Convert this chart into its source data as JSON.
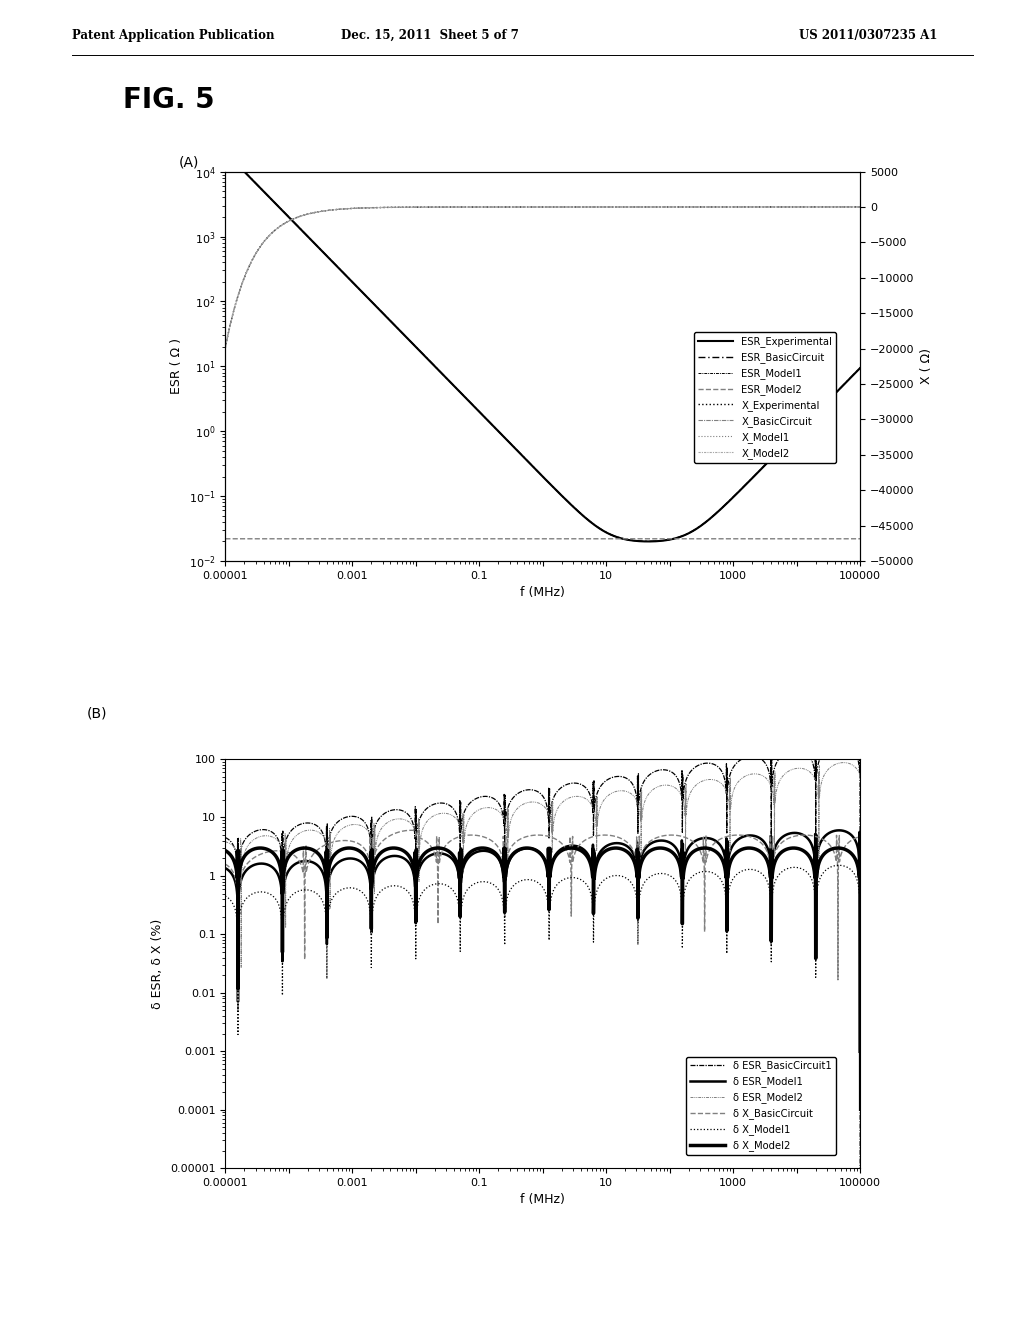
{
  "header_left": "Patent Application Publication",
  "header_mid": "Dec. 15, 2011  Sheet 5 of 7",
  "header_right": "US 2011/0307235 A1",
  "fig_label": "FIG. 5",
  "panel_A_label": "(A)",
  "panel_B_label": "(B)",
  "plot_A": {
    "xlabel": "f (MHz)",
    "ylabel_left": "ESR ( Ω )",
    "ylabel_right": "X ( Ω)",
    "xlim_log": [
      -5,
      5
    ],
    "ylim_left": [
      0.01,
      10000
    ],
    "ylim_right": [
      -50000,
      5000
    ],
    "yticks_right": [
      5000,
      0,
      -5000,
      -10000,
      -15000,
      -20000,
      -25000,
      -30000,
      -35000,
      -40000,
      -45000,
      -50000
    ],
    "xtick_labels": [
      "0.00001",
      "",
      "0.001",
      "",
      "0.1",
      "",
      "10",
      "",
      "1000",
      "",
      "100000"
    ]
  },
  "plot_B": {
    "xlabel": "f (MHz)",
    "ylabel_left": "δ ESR, δ X (%)",
    "xlim_log": [
      -5,
      5
    ],
    "ylim": [
      1e-05,
      100
    ],
    "xtick_labels": [
      "0.00001",
      "",
      "0.001",
      "",
      "0.1",
      "",
      "10",
      "",
      "1000",
      "",
      "100000"
    ]
  }
}
